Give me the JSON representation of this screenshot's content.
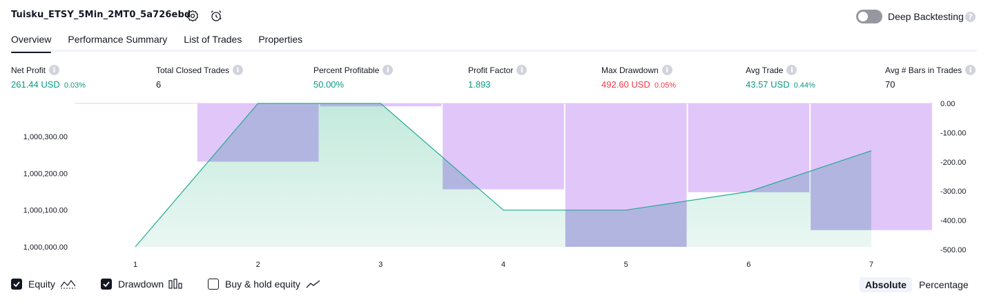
{
  "header": {
    "title": "Tuisku_ETSY_5Min_2MT0_5a726ebd",
    "deep_backtesting_label": "Deep Backtesting"
  },
  "tabs": [
    {
      "label": "Overview"
    },
    {
      "label": "Performance Summary"
    },
    {
      "label": "List of Trades"
    },
    {
      "label": "Properties"
    }
  ],
  "stats": {
    "net_profit": {
      "label": "Net Profit",
      "value": "261.44 USD",
      "pct": "0.03%"
    },
    "total_closed_trades": {
      "label": "Total Closed Trades",
      "value": "6"
    },
    "percent_profitable": {
      "label": "Percent Profitable",
      "value": "50.00%"
    },
    "profit_factor": {
      "label": "Profit Factor",
      "value": "1.893"
    },
    "max_drawdown": {
      "label": "Max Drawdown",
      "value": "492.60 USD",
      "pct": "0.05%"
    },
    "avg_trade": {
      "label": "Avg Trade",
      "value": "43.57 USD",
      "pct": "0.44%"
    },
    "avg_bars": {
      "label": "Avg # Bars in Trades",
      "value": "70"
    }
  },
  "chart_data": {
    "type": "area",
    "x": [
      1,
      2,
      3,
      4,
      5,
      6,
      7
    ],
    "left_axis_ticks": [
      "1,000,300.00",
      "1,000,200.00",
      "1,000,100.00",
      "1,000,000.00"
    ],
    "right_axis_ticks": [
      "0.00",
      "-100.00",
      "-200.00",
      "-300.00",
      "-400.00",
      "-500.00"
    ],
    "series": [
      {
        "name": "Equity",
        "axis": "left",
        "values": [
          1000000,
          1000390,
          1000390,
          1000100,
          1000100,
          1000150,
          1000261.44
        ]
      },
      {
        "name": "Drawdown",
        "axis": "right",
        "type": "bar",
        "values": [
          0,
          -200,
          -10,
          -295,
          -492.6,
          -305,
          -435
        ]
      }
    ],
    "left_ylim": [
      1000000,
      1000390
    ],
    "right_ylim": [
      -492.6,
      0
    ],
    "colors": {
      "equity_line": "#22ab94",
      "equity_fill": "#c4eadd",
      "drawdown_bar": "#e1c6fa",
      "drawdown_overlap": "#b2b5e0"
    }
  },
  "legend": {
    "equity": "Equity",
    "drawdown": "Drawdown",
    "buy_hold": "Buy & hold equity"
  },
  "view_toggle": {
    "absolute": "Absolute",
    "percentage": "Percentage",
    "selected": "Absolute"
  }
}
